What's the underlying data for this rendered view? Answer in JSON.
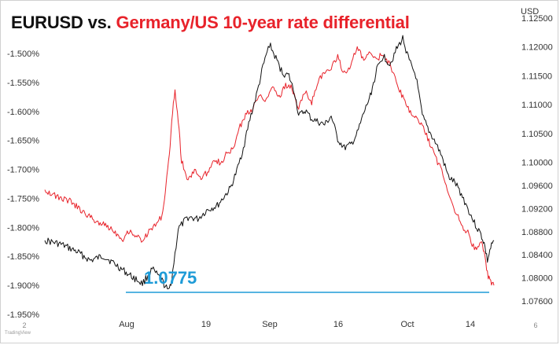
{
  "chart_data": {
    "type": "line",
    "title_part1": "EURUSD vs.",
    "title_part2": "Germany/US 10-year rate differential",
    "y_left": {
      "ticks": [
        "-1.500%",
        "-1.550%",
        "-1.600%",
        "-1.650%",
        "-1.700%",
        "-1.750%",
        "-1.800%",
        "-1.850%",
        "-1.900%",
        "-1.950%"
      ],
      "min": -1.95,
      "max": -1.5
    },
    "y_right": {
      "unit": "USD",
      "ticks": [
        "1.12500",
        "1.12000",
        "1.11500",
        "1.11000",
        "1.10500",
        "1.10000",
        "1.09600",
        "1.09200",
        "1.08800",
        "1.08400",
        "1.08000",
        "1.07600"
      ],
      "min": 1.076,
      "max": 1.125
    },
    "x_ticks": [
      "Aug",
      "19",
      "Sep",
      "16",
      "Oct",
      "14"
    ],
    "x_minor_ticks": [
      "2",
      "6"
    ],
    "series": [
      {
        "color": "#111111",
        "axis": "right",
        "points": [
          [
            0,
            1.0865
          ],
          [
            5,
            1.0858
          ],
          [
            10,
            1.0845
          ],
          [
            14,
            1.083
          ],
          [
            18,
            1.0838
          ],
          [
            22,
            1.0822
          ],
          [
            26,
            1.0805
          ],
          [
            30,
            1.079
          ],
          [
            33,
            1.0815
          ],
          [
            36,
            1.0795
          ],
          [
            38,
            1.0776
          ],
          [
            39,
            1.0798
          ],
          [
            41,
            1.0885
          ],
          [
            44,
            1.0905
          ],
          [
            47,
            1.0902
          ],
          [
            50,
            1.0918
          ],
          [
            53,
            1.0925
          ],
          [
            55,
            1.094
          ],
          [
            57,
            1.0955
          ],
          [
            59,
            1.0985
          ],
          [
            61,
            1.1025
          ],
          [
            63,
            1.1075
          ],
          [
            65,
            1.1115
          ],
          [
            67,
            1.1165
          ],
          [
            69,
            1.1205
          ],
          [
            71,
            1.118
          ],
          [
            73,
            1.1155
          ],
          [
            75,
            1.115
          ],
          [
            77,
            1.1115
          ],
          [
            78,
            1.108
          ],
          [
            80,
            1.109
          ],
          [
            82,
            1.1075
          ],
          [
            84,
            1.107
          ],
          [
            86,
            1.1065
          ],
          [
            88,
            1.108
          ],
          [
            90,
            1.104
          ],
          [
            92,
            1.1025
          ],
          [
            94,
            1.103
          ],
          [
            96,
            1.105
          ],
          [
            98,
            1.1085
          ],
          [
            100,
            1.1115
          ],
          [
            102,
            1.116
          ],
          [
            104,
            1.1185
          ],
          [
            106,
            1.117
          ],
          [
            108,
            1.1195
          ],
          [
            110,
            1.1215
          ],
          [
            112,
            1.1175
          ],
          [
            114,
            1.115
          ],
          [
            116,
            1.108
          ],
          [
            118,
            1.1055
          ],
          [
            120,
            1.1035
          ],
          [
            122,
            1.101
          ],
          [
            124,
            1.0975
          ],
          [
            126,
            1.0965
          ],
          [
            128,
            1.0945
          ],
          [
            130,
            1.092
          ],
          [
            132,
            1.0895
          ],
          [
            134,
            1.0875
          ],
          [
            135,
            1.086
          ],
          [
            136,
            1.083
          ],
          [
            137,
            1.0852
          ],
          [
            138,
            1.0865
          ]
        ]
      },
      {
        "color": "#e8222a",
        "axis": "left",
        "points": [
          [
            0,
            -1.735
          ],
          [
            4,
            -1.748
          ],
          [
            8,
            -1.755
          ],
          [
            12,
            -1.775
          ],
          [
            16,
            -1.79
          ],
          [
            20,
            -1.8
          ],
          [
            24,
            -1.82
          ],
          [
            26,
            -1.805
          ],
          [
            28,
            -1.815
          ],
          [
            30,
            -1.822
          ],
          [
            32,
            -1.808
          ],
          [
            34,
            -1.795
          ],
          [
            36,
            -1.78
          ],
          [
            37,
            -1.74
          ],
          [
            38,
            -1.69
          ],
          [
            39,
            -1.62
          ],
          [
            40,
            -1.56
          ],
          [
            41,
            -1.615
          ],
          [
            42,
            -1.685
          ],
          [
            44,
            -1.72
          ],
          [
            46,
            -1.7
          ],
          [
            48,
            -1.715
          ],
          [
            50,
            -1.705
          ],
          [
            52,
            -1.68
          ],
          [
            54,
            -1.69
          ],
          [
            56,
            -1.672
          ],
          [
            58,
            -1.665
          ],
          [
            60,
            -1.625
          ],
          [
            62,
            -1.605
          ],
          [
            64,
            -1.595
          ],
          [
            66,
            -1.57
          ],
          [
            68,
            -1.58
          ],
          [
            70,
            -1.555
          ],
          [
            72,
            -1.575
          ],
          [
            74,
            -1.555
          ],
          [
            76,
            -1.56
          ],
          [
            78,
            -1.595
          ],
          [
            80,
            -1.565
          ],
          [
            82,
            -1.585
          ],
          [
            84,
            -1.545
          ],
          [
            86,
            -1.535
          ],
          [
            88,
            -1.525
          ],
          [
            90,
            -1.505
          ],
          [
            92,
            -1.535
          ],
          [
            94,
            -1.52
          ],
          [
            96,
            -1.49
          ],
          [
            98,
            -1.512
          ],
          [
            100,
            -1.5
          ],
          [
            102,
            -1.51
          ],
          [
            104,
            -1.5
          ],
          [
            106,
            -1.52
          ],
          [
            108,
            -1.55
          ],
          [
            110,
            -1.575
          ],
          [
            112,
            -1.6
          ],
          [
            114,
            -1.61
          ],
          [
            116,
            -1.625
          ],
          [
            118,
            -1.65
          ],
          [
            120,
            -1.68
          ],
          [
            122,
            -1.7
          ],
          [
            124,
            -1.74
          ],
          [
            126,
            -1.77
          ],
          [
            128,
            -1.795
          ],
          [
            130,
            -1.81
          ],
          [
            132,
            -1.838
          ],
          [
            134,
            -1.825
          ],
          [
            135,
            -1.845
          ],
          [
            136,
            -1.88
          ],
          [
            137,
            -1.895
          ],
          [
            138,
            -1.9
          ]
        ]
      }
    ],
    "annotation": {
      "label": "1.0775",
      "value": 1.0775,
      "color": "#1e9bd7"
    },
    "brand": "TradingView",
    "grid": false,
    "legend": "none"
  }
}
